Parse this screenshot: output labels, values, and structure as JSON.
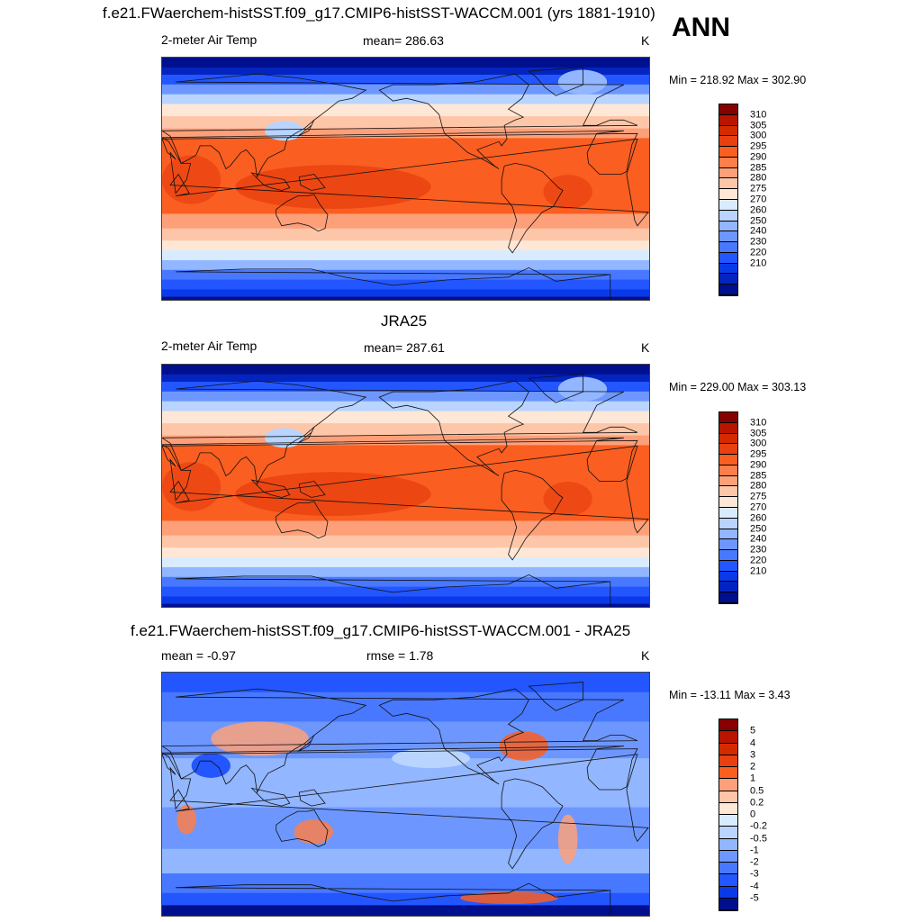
{
  "ann_label": "ANN",
  "panels": [
    {
      "title": "f.e21.FWaerchem-histSST.f09_g17.CMIP6-histSST-WACCM.001 (yrs 1881-1910)",
      "left_label": "2-meter Air Temp",
      "center_label": "mean= 286.63",
      "units": "K",
      "minmax": "Min = 218.92 Max = 302.90",
      "colorbar": {
        "colors": [
          "#870000",
          "#b81400",
          "#d42a00",
          "#e84010",
          "#fa5e20",
          "#fc7e4a",
          "#fda07a",
          "#fec6a8",
          "#fee7d6",
          "#d9ecff",
          "#b8d4ff",
          "#92b6ff",
          "#6d97ff",
          "#4778ff",
          "#2356ff",
          "#0a3ae8",
          "#0424bf",
          "#000f8e"
        ],
        "labels": [
          "310",
          "305",
          "300",
          "295",
          "290",
          "285",
          "280",
          "275",
          "270",
          "260",
          "250",
          "240",
          "230",
          "220",
          "210"
        ]
      }
    },
    {
      "title": "JRA25",
      "left_label": "2-meter Air Temp",
      "center_label": "mean= 287.61",
      "units": "K",
      "minmax": "Min = 229.00 Max = 303.13",
      "colorbar": {
        "colors": [
          "#870000",
          "#b81400",
          "#d42a00",
          "#e84010",
          "#fa5e20",
          "#fc7e4a",
          "#fda07a",
          "#fec6a8",
          "#fee7d6",
          "#d9ecff",
          "#b8d4ff",
          "#92b6ff",
          "#6d97ff",
          "#4778ff",
          "#2356ff",
          "#0a3ae8",
          "#0424bf",
          "#000f8e"
        ],
        "labels": [
          "310",
          "305",
          "300",
          "295",
          "290",
          "285",
          "280",
          "275",
          "270",
          "260",
          "250",
          "240",
          "230",
          "220",
          "210"
        ]
      }
    },
    {
      "title": "f.e21.FWaerchem-histSST.f09_g17.CMIP6-histSST-WACCM.001 - JRA25",
      "left_label": "mean =  -0.97",
      "center_label": "rmse =   1.78",
      "units": "K",
      "minmax": "Min = -13.11 Max =   3.43",
      "colorbar": {
        "colors": [
          "#870000",
          "#b81400",
          "#d42a00",
          "#e84010",
          "#fa5e20",
          "#fda07a",
          "#fec6a8",
          "#fee7d6",
          "#d9ecff",
          "#b8d4ff",
          "#92b6ff",
          "#6d97ff",
          "#4778ff",
          "#2356ff",
          "#0a3ae8",
          "#000f8e"
        ],
        "labels": [
          "5",
          "4",
          "3",
          "2",
          "1",
          "0.5",
          "0.2",
          "0",
          "-0.2",
          "-0.5",
          "-1",
          "-2",
          "-3",
          "-4",
          "-5"
        ]
      }
    }
  ]
}
